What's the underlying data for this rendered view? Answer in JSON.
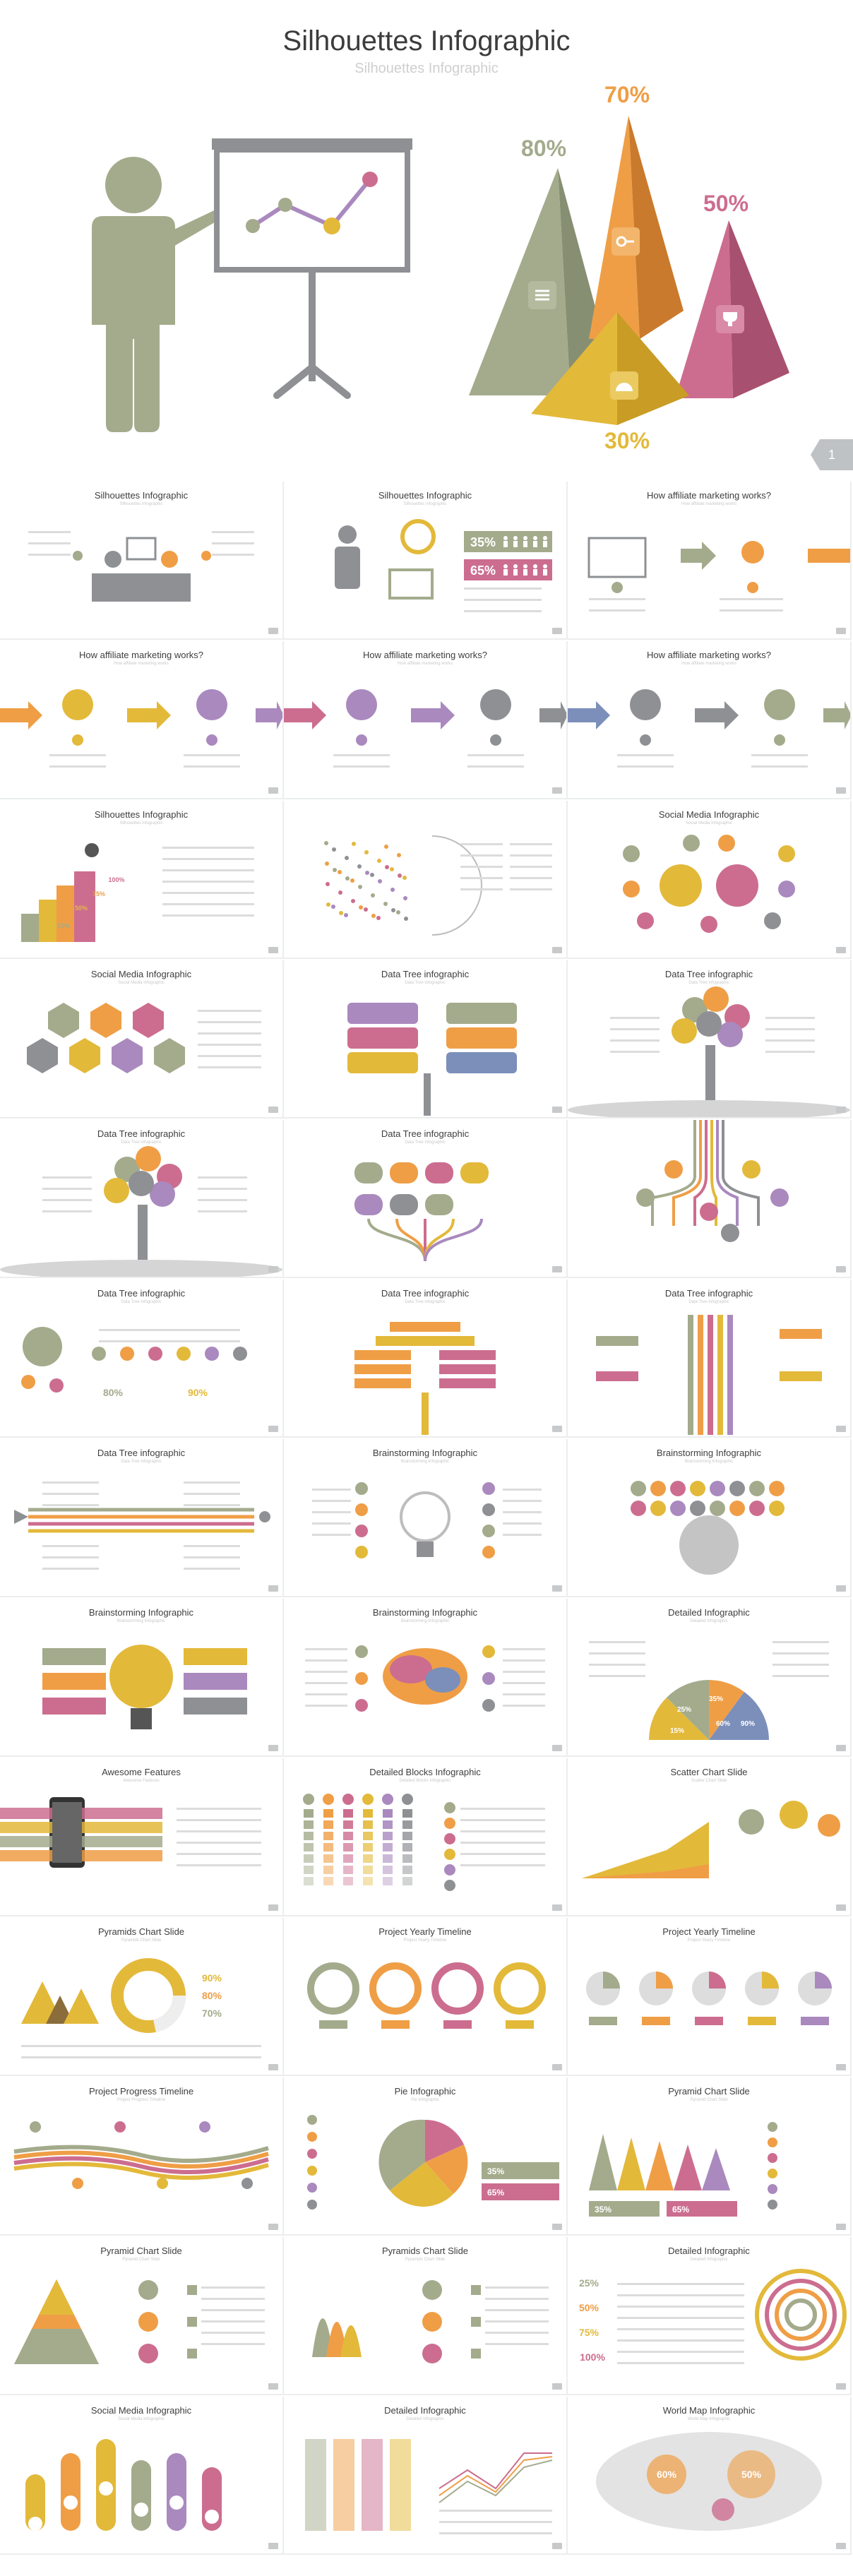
{
  "hero": {
    "title": "Silhouettes Infographic",
    "subtitle": "Silhouettes Infographic",
    "page_number": "1",
    "percentages": {
      "p80": "80%",
      "p70": "70%",
      "p50": "50%",
      "p30": "30%"
    },
    "colors": {
      "green": "#a3ab8c",
      "orange": "#ef9e46",
      "pink": "#cc6d8f",
      "yellow": "#e3b93a",
      "purple": "#a989be",
      "grey": "#8e9094"
    }
  },
  "slides": [
    {
      "title": "Silhouettes Infographic",
      "subtitle": "Silhouettes Infographic"
    },
    {
      "title": "Silhouettes Infographic",
      "subtitle": "Silhouettes Infographic"
    },
    {
      "title": "How affiliate marketing works?",
      "subtitle": "How affiliate marketing works"
    },
    {
      "title": "How affiliate marketing works?",
      "subtitle": "How affiliate marketing works"
    },
    {
      "title": "How affiliate marketing works?",
      "subtitle": "How affiliate marketing works"
    },
    {
      "title": "How affiliate marketing works?",
      "subtitle": "How affiliate marketing works"
    },
    {
      "title": "Silhouettes Infographic",
      "subtitle": "Silhouettes Infographic"
    },
    {
      "title": "",
      "subtitle": ""
    },
    {
      "title": "Social Media Infographic",
      "subtitle": "Social Media Infographic"
    },
    {
      "title": "Social Media Infographic",
      "subtitle": "Social Media Infographic"
    },
    {
      "title": "Data Tree infographic",
      "subtitle": "Data Tree infographic"
    },
    {
      "title": "Data Tree infographic",
      "subtitle": "Data Tree infographic"
    },
    {
      "title": "Data Tree infographic",
      "subtitle": "Data Tree infographic"
    },
    {
      "title": "Data Tree infographic",
      "subtitle": "Data Tree infographic"
    },
    {
      "title": "",
      "subtitle": ""
    },
    {
      "title": "Data Tree infographic",
      "subtitle": "Data Tree infographic"
    },
    {
      "title": "Data Tree infographic",
      "subtitle": "Data Tree infographic"
    },
    {
      "title": "Data Tree infographic",
      "subtitle": "Data Tree infographic"
    },
    {
      "title": "Data Tree infographic",
      "subtitle": "Data Tree infographic"
    },
    {
      "title": "Brainstorming Infographic",
      "subtitle": "Brainstorming Infographic"
    },
    {
      "title": "Brainstorming Infographic",
      "subtitle": "Brainstorming Infographic"
    },
    {
      "title": "Brainstorming Infographic",
      "subtitle": "Brainstorming Infographic"
    },
    {
      "title": "Brainstorming Infographic",
      "subtitle": "Brainstorming Infographic"
    },
    {
      "title": "Detailed Infographic",
      "subtitle": "Detailed Infographic"
    },
    {
      "title": "Awesome Features",
      "subtitle": "Awesome Features"
    },
    {
      "title": "Detailed Blocks Infographic",
      "subtitle": "Detailed Blocks Infographic"
    },
    {
      "title": "Scatter Chart Slide",
      "subtitle": "Scatter Chart Slide"
    },
    {
      "title": "Pyramids Chart Slide",
      "subtitle": "Pyramids Chart Slide"
    },
    {
      "title": "Project Yearly Timeline",
      "subtitle": "Project Yearly Timeline"
    },
    {
      "title": "Project Yearly Timeline",
      "subtitle": "Project Yearly Timeline"
    },
    {
      "title": "Project Progress Timeline",
      "subtitle": "Project Progress Timeline"
    },
    {
      "title": "Pie Infographic",
      "subtitle": "Pie Infographic"
    },
    {
      "title": "Pyramid Chart Slide",
      "subtitle": "Pyramid Chart Slide"
    },
    {
      "title": "Pyramid Chart Slide",
      "subtitle": "Pyramid Chart Slide"
    },
    {
      "title": "Pyramids Chart Slide",
      "subtitle": "Pyramids Chart Slide"
    },
    {
      "title": "Detailed Infographic",
      "subtitle": "Detailed Infographic"
    },
    {
      "title": "Social Media Infographic",
      "subtitle": "Social Media Infographic"
    },
    {
      "title": "Detailed Infographic",
      "subtitle": "Detailed Infographic"
    },
    {
      "title": "World Map Infographic",
      "subtitle": "World Map Infographic"
    }
  ],
  "thumb_labels": {
    "s2_p35": "35%",
    "s2_p65": "65%",
    "s7_p100": "100%",
    "s7_p75": "75%",
    "s7_p50": "50%",
    "s7_p25": "25%",
    "s17_p80": "80%",
    "s17_p90": "90%",
    "s24_p15": "15%",
    "s24_p25": "25%",
    "s24_p35": "35%",
    "s24_p90": "90%",
    "s24_p60": "60%",
    "s28_p90": "90%",
    "s28_p80": "80%",
    "s28_p70": "70%",
    "s32_p35": "35%",
    "s32_p65": "65%",
    "s33_p35": "35%",
    "s33_p65": "65%",
    "s36_p25": "25%",
    "s36_p50": "50%",
    "s36_p75": "75%",
    "s36_p100": "100%",
    "s39_p60": "60%",
    "s39_p50": "50%"
  }
}
